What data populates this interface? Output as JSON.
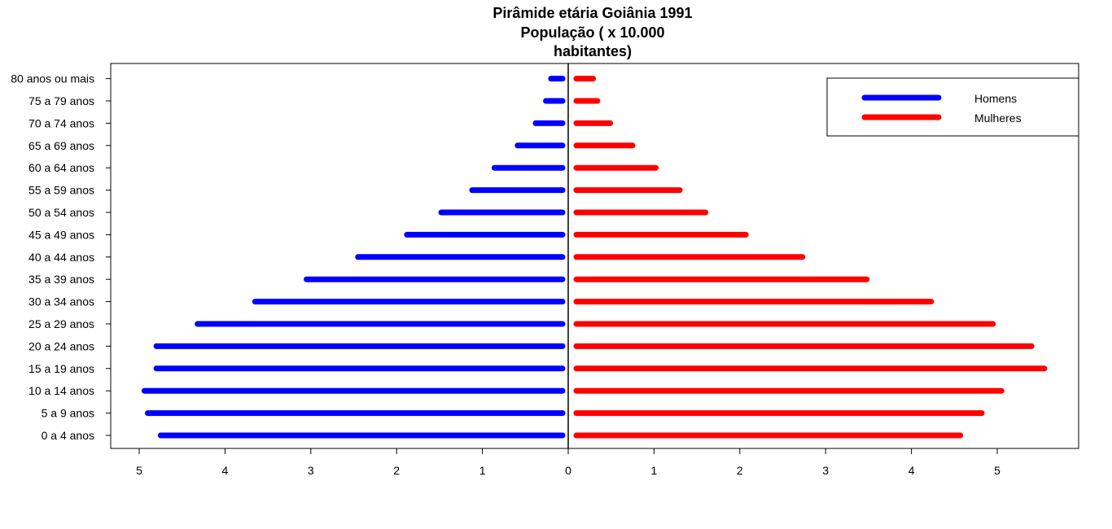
{
  "chart_data": {
    "type": "bar",
    "orientation": "horizontal-pyramid",
    "title_lines": [
      "Pirâmide etária Goiânia 1991",
      "População ( x 10.000",
      "habitantes)"
    ],
    "categories": [
      "0 a 4 anos",
      "5 a 9 anos",
      "10 a 14 anos",
      "15 a 19 anos",
      "20 a 24 anos",
      "25 a 29 anos",
      "30 a 34 anos",
      "35 a 39 anos",
      "40 a 44 anos",
      "45 a 49 anos",
      "50 a 54 anos",
      "55 a 59 anos",
      "60 a 64 anos",
      "65 a 69 anos",
      "70 a 74 anos",
      "75 a 79 anos",
      "80 anos ou mais"
    ],
    "series": [
      {
        "name": "Homens",
        "color": "#0000FF",
        "side": "left",
        "values": [
          4.75,
          4.9,
          4.94,
          4.8,
          4.8,
          4.32,
          3.65,
          3.05,
          2.45,
          1.88,
          1.48,
          1.12,
          0.86,
          0.59,
          0.38,
          0.26,
          0.2
        ]
      },
      {
        "name": "Mulheres",
        "color": "#FF0000",
        "side": "right",
        "values": [
          4.57,
          4.82,
          5.05,
          5.55,
          5.4,
          4.95,
          4.23,
          3.48,
          2.73,
          2.07,
          1.6,
          1.3,
          1.02,
          0.75,
          0.49,
          0.34,
          0.29
        ]
      }
    ],
    "x_ticks_left": [
      "5",
      "4",
      "3",
      "2",
      "1",
      "0"
    ],
    "x_ticks_right": [
      "1",
      "2",
      "3",
      "4",
      "5"
    ],
    "xlim_left": [
      0,
      5
    ],
    "xlim_right": [
      0,
      5
    ],
    "legend": {
      "position": "top-right",
      "entries": [
        "Homens",
        "Mulheres"
      ]
    },
    "grid": false
  }
}
